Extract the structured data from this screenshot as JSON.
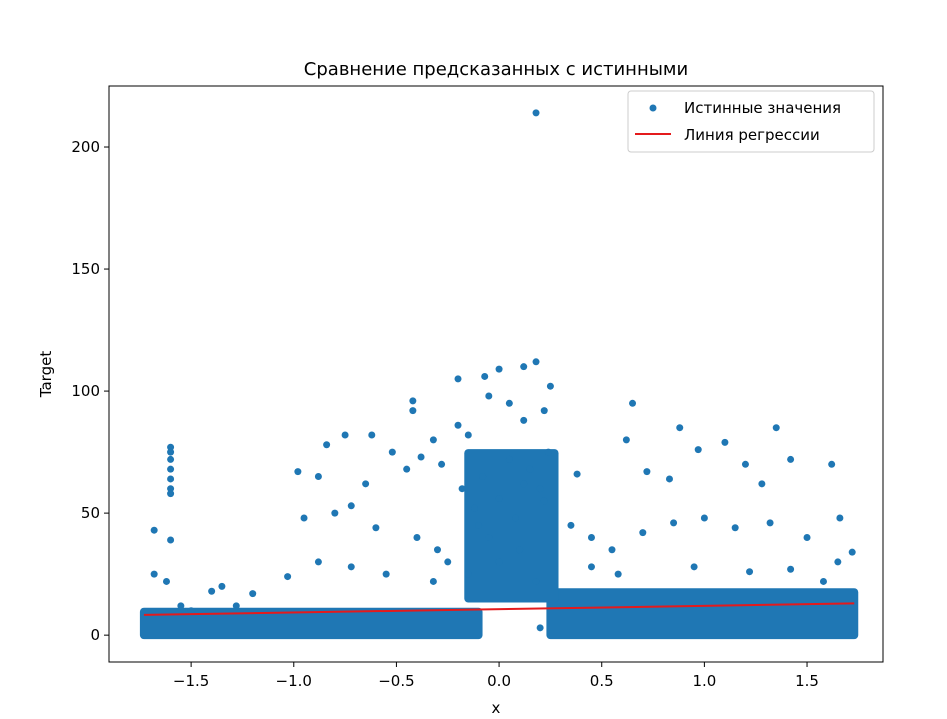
{
  "chart_data": {
    "type": "scatter",
    "title": "Сравнение предсказанных с истинными",
    "xlabel": "x",
    "ylabel": "Target",
    "xlim": [
      -1.9,
      1.87
    ],
    "ylim": [
      -11,
      225
    ],
    "xticks": [
      -1.5,
      -1.0,
      -0.5,
      0.0,
      0.5,
      1.0,
      1.5
    ],
    "xtick_labels": [
      "−1.5",
      "−1.0",
      "−0.5",
      "0.0",
      "0.5",
      "1.0",
      "1.5"
    ],
    "yticks": [
      0,
      50,
      100,
      150,
      200
    ],
    "ytick_labels": [
      "0",
      "50",
      "100",
      "150",
      "200"
    ],
    "grid": false,
    "legend_position": "top-right",
    "series": [
      {
        "name": "Истинные значения",
        "kind": "scatter",
        "color": "#1f77b4",
        "points": [
          [
            0.18,
            214
          ],
          [
            0.18,
            112
          ],
          [
            0.0,
            109
          ],
          [
            -0.07,
            106
          ],
          [
            0.12,
            110
          ],
          [
            -0.2,
            105
          ],
          [
            0.25,
            102
          ],
          [
            -0.42,
            96
          ],
          [
            -0.42,
            92
          ],
          [
            0.65,
            95
          ],
          [
            -0.2,
            86
          ],
          [
            -0.32,
            80
          ],
          [
            -0.62,
            82
          ],
          [
            -0.75,
            82
          ],
          [
            -0.84,
            78
          ],
          [
            -0.15,
            82
          ],
          [
            0.12,
            88
          ],
          [
            0.05,
            95
          ],
          [
            -0.05,
            98
          ],
          [
            0.22,
            92
          ],
          [
            -0.38,
            73
          ],
          [
            -0.52,
            75
          ],
          [
            0.88,
            85
          ],
          [
            1.35,
            85
          ],
          [
            1.1,
            79
          ],
          [
            0.97,
            76
          ],
          [
            0.62,
            80
          ],
          [
            1.62,
            70
          ],
          [
            1.42,
            72
          ],
          [
            1.2,
            70
          ],
          [
            0.72,
            67
          ],
          [
            0.38,
            66
          ],
          [
            0.83,
            64
          ],
          [
            1.28,
            62
          ],
          [
            -0.98,
            67
          ],
          [
            -0.88,
            65
          ],
          [
            -0.65,
            62
          ],
          [
            -0.28,
            70
          ],
          [
            -0.45,
            68
          ],
          [
            -1.6,
            77
          ],
          [
            -1.6,
            75
          ],
          [
            -1.6,
            72
          ],
          [
            -1.6,
            68
          ],
          [
            -1.6,
            64
          ],
          [
            -1.6,
            60
          ],
          [
            -1.6,
            58
          ],
          [
            -1.6,
            39
          ],
          [
            -1.68,
            43
          ],
          [
            -1.03,
            24
          ],
          [
            -0.95,
            48
          ],
          [
            -0.8,
            50
          ],
          [
            -0.72,
            53
          ],
          [
            -0.6,
            44
          ],
          [
            -0.4,
            40
          ],
          [
            -0.3,
            35
          ],
          [
            -0.25,
            30
          ],
          [
            0.35,
            45
          ],
          [
            0.45,
            40
          ],
          [
            0.55,
            35
          ],
          [
            0.7,
            42
          ],
          [
            0.85,
            46
          ],
          [
            1.0,
            48
          ],
          [
            1.15,
            44
          ],
          [
            1.32,
            46
          ],
          [
            1.5,
            40
          ],
          [
            1.66,
            48
          ],
          [
            1.72,
            34
          ],
          [
            1.65,
            30
          ],
          [
            -1.5,
            10
          ],
          [
            -1.4,
            18
          ],
          [
            -1.35,
            20
          ],
          [
            -1.2,
            17
          ],
          [
            -1.28,
            12
          ],
          [
            -1.68,
            25
          ],
          [
            -1.62,
            22
          ],
          [
            -1.55,
            12
          ],
          [
            0.2,
            3
          ],
          [
            0.2,
            60
          ],
          [
            0.22,
            55
          ],
          [
            -0.12,
            52
          ],
          [
            0.08,
            48
          ],
          [
            -0.05,
            40
          ],
          [
            0.1,
            35
          ],
          [
            0.0,
            30
          ],
          [
            -0.15,
            25
          ],
          [
            0.18,
            22
          ],
          [
            -0.88,
            30
          ],
          [
            -0.72,
            28
          ],
          [
            -0.55,
            25
          ],
          [
            -0.32,
            22
          ],
          [
            0.45,
            28
          ],
          [
            0.58,
            25
          ],
          [
            0.95,
            28
          ],
          [
            1.22,
            26
          ],
          [
            1.42,
            27
          ],
          [
            1.58,
            22
          ],
          [
            -0.08,
            65
          ],
          [
            0.15,
            68
          ],
          [
            0.05,
            72
          ],
          [
            -0.18,
            60
          ],
          [
            0.24,
            75
          ],
          [
            -0.1,
            45
          ],
          [
            0.12,
            62
          ],
          [
            0.0,
            56
          ]
        ],
        "dense_regions": [
          {
            "x": [
              -1.73,
              -0.1
            ],
            "y": [
              0,
              10
            ]
          },
          {
            "x": [
              0.25,
              1.73
            ],
            "y": [
              0,
              18
            ]
          },
          {
            "x": [
              -0.15,
              0.27
            ],
            "y": [
              15,
              75
            ]
          }
        ]
      },
      {
        "name": "Линия регрессии",
        "kind": "line",
        "color": "#e41a1c",
        "points": [
          [
            -1.73,
            8.3
          ],
          [
            1.73,
            13.0
          ]
        ]
      }
    ]
  }
}
